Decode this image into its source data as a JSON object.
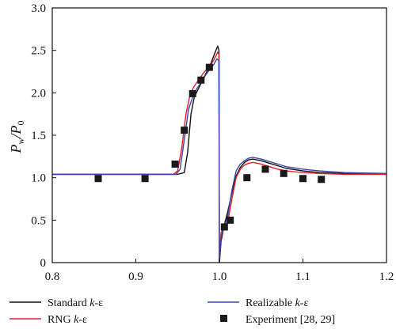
{
  "chart_data": {
    "type": "line",
    "title": "",
    "xlabel": "",
    "ylabel": "P_w/P_0",
    "ylabel_parts": {
      "base": "P",
      "sub1": "w",
      "sep": "/P",
      "sub2": "0"
    },
    "xlim": [
      0.8,
      1.2
    ],
    "ylim": [
      0,
      3.0
    ],
    "xticks": [
      0.8,
      0.9,
      1.0,
      1.1,
      1.2
    ],
    "xtick_labels": [
      "0.8",
      "0.9",
      "1.0",
      "1.1",
      "1.2"
    ],
    "yticks": [
      0,
      0.5,
      1.0,
      1.5,
      2.0,
      2.5,
      3.0
    ],
    "ytick_labels": [
      "0",
      "0.5",
      "1.0",
      "1.5",
      "2.0",
      "2.5",
      "3.0"
    ],
    "grid": false,
    "legend_position": "bottom",
    "series": [
      {
        "name": "Standard k-ε",
        "name_parts": {
          "text": "Standard ",
          "italic": "k",
          "suffix": "-ε"
        },
        "color": "#111111",
        "kind": "line",
        "x": [
          0.8,
          0.9,
          0.95,
          0.958,
          0.962,
          0.966,
          0.97,
          0.975,
          0.98,
          0.985,
          0.99,
          0.995,
          0.998,
          0.9995,
          1.0,
          1.0005,
          1.002,
          1.006,
          1.01,
          1.015,
          1.02,
          1.025,
          1.03,
          1.035,
          1.04,
          1.05,
          1.06,
          1.07,
          1.08,
          1.1,
          1.12,
          1.15,
          1.2
        ],
        "y": [
          1.04,
          1.04,
          1.04,
          1.06,
          1.3,
          1.75,
          1.95,
          2.05,
          2.15,
          2.25,
          2.35,
          2.48,
          2.55,
          2.5,
          0.0,
          0.05,
          0.25,
          0.45,
          0.6,
          0.82,
          1.02,
          1.12,
          1.18,
          1.21,
          1.22,
          1.2,
          1.17,
          1.14,
          1.11,
          1.08,
          1.06,
          1.05,
          1.04
        ]
      },
      {
        "name": "RNG k-ε",
        "name_parts": {
          "text": "RNG ",
          "italic": "k",
          "suffix": "-ε"
        },
        "color": "#e3202a",
        "kind": "line",
        "x": [
          0.8,
          0.9,
          0.945,
          0.95,
          0.955,
          0.96,
          0.965,
          0.97,
          0.975,
          0.98,
          0.985,
          0.99,
          0.995,
          0.998,
          0.9995,
          1.0,
          1.0005,
          1.002,
          1.005,
          1.01,
          1.015,
          1.02,
          1.025,
          1.03,
          1.035,
          1.04,
          1.05,
          1.06,
          1.07,
          1.08,
          1.1,
          1.12,
          1.15,
          1.2
        ],
        "y": [
          1.04,
          1.04,
          1.04,
          1.08,
          1.35,
          1.75,
          1.98,
          2.08,
          2.15,
          2.22,
          2.28,
          2.33,
          2.42,
          2.48,
          2.45,
          0.0,
          0.1,
          0.35,
          0.42,
          0.48,
          0.75,
          1.0,
          1.1,
          1.15,
          1.17,
          1.18,
          1.16,
          1.13,
          1.1,
          1.08,
          1.06,
          1.05,
          1.04,
          1.04
        ]
      },
      {
        "name": "Realizable k-ε",
        "name_parts": {
          "text": "Realizable ",
          "italic": "k",
          "suffix": "-ε"
        },
        "color": "#3a47a6",
        "kind": "line",
        "x": [
          0.8,
          0.9,
          0.948,
          0.953,
          0.958,
          0.963,
          0.968,
          0.973,
          0.978,
          0.983,
          0.988,
          0.993,
          0.997,
          0.9995,
          1.0,
          1.0005,
          1.002,
          1.005,
          1.01,
          1.015,
          1.02,
          1.025,
          1.03,
          1.035,
          1.04,
          1.05,
          1.06,
          1.07,
          1.08,
          1.1,
          1.12,
          1.15,
          1.2
        ],
        "y": [
          1.04,
          1.04,
          1.04,
          1.1,
          1.45,
          1.8,
          1.95,
          2.05,
          2.12,
          2.2,
          2.27,
          2.33,
          2.4,
          2.38,
          0.0,
          0.1,
          0.3,
          0.4,
          0.55,
          0.85,
          1.08,
          1.16,
          1.2,
          1.23,
          1.24,
          1.22,
          1.19,
          1.16,
          1.13,
          1.1,
          1.08,
          1.06,
          1.05
        ]
      },
      {
        "name": "Experiment [28, 29]",
        "name_parts": {
          "text": "Experiment [28, 29]",
          "italic": "",
          "suffix": ""
        },
        "color": "#1a1a1a",
        "kind": "scatter",
        "x": [
          0.855,
          0.911,
          0.947,
          0.958,
          0.968,
          0.978,
          0.988,
          1.006,
          1.013,
          1.033,
          1.055,
          1.077,
          1.1,
          1.122
        ],
        "y": [
          0.99,
          0.99,
          1.16,
          1.56,
          1.99,
          2.15,
          2.3,
          0.42,
          0.5,
          1.0,
          1.1,
          1.05,
          0.99,
          0.98
        ]
      }
    ]
  }
}
